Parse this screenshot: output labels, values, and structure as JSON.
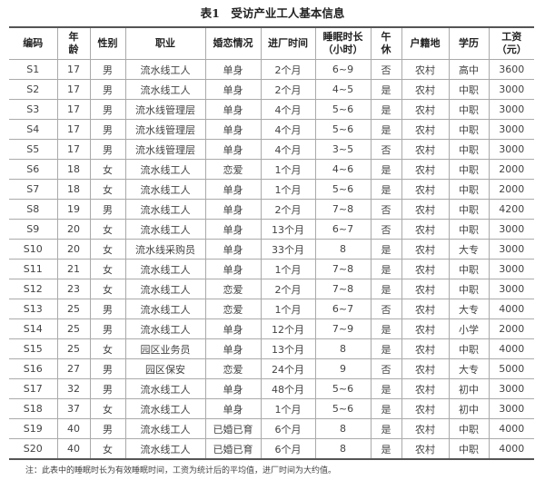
{
  "title": "表1　受访产业工人基本信息",
  "headers": [
    "编码",
    "年龄",
    "性别",
    "职业",
    "婚恋情况",
    "进厂时间",
    "睡眠时长（小时）",
    "午休",
    "户籍地",
    "学历",
    "工资（元）"
  ],
  "rows": [
    [
      "S1",
      "17",
      "男",
      "流水线工人",
      "单身",
      "2个月",
      "6~9",
      "否",
      "农村",
      "高中",
      "3600"
    ],
    [
      "S2",
      "17",
      "男",
      "流水线工人",
      "单身",
      "2个月",
      "4~5",
      "是",
      "农村",
      "中职",
      "3000"
    ],
    [
      "S3",
      "17",
      "男",
      "流水线管理层",
      "单身",
      "4个月",
      "5~6",
      "是",
      "农村",
      "中职",
      "3000"
    ],
    [
      "S4",
      "17",
      "男",
      "流水线管理层",
      "单身",
      "4个月",
      "5~6",
      "是",
      "农村",
      "中职",
      "3000"
    ],
    [
      "S5",
      "17",
      "男",
      "流水线管理层",
      "单身",
      "4个月",
      "3~5",
      "否",
      "农村",
      "中职",
      "3000"
    ],
    [
      "S6",
      "18",
      "女",
      "流水线工人",
      "恋爱",
      "1个月",
      "4~6",
      "是",
      "农村",
      "中职",
      "2000"
    ],
    [
      "S7",
      "18",
      "女",
      "流水线工人",
      "单身",
      "1个月",
      "5~6",
      "是",
      "农村",
      "中职",
      "2000"
    ],
    [
      "S8",
      "19",
      "男",
      "流水线工人",
      "单身",
      "2个月",
      "7~8",
      "否",
      "农村",
      "中职",
      "4200"
    ],
    [
      "S9",
      "20",
      "女",
      "流水线工人",
      "单身",
      "13个月",
      "6~7",
      "否",
      "农村",
      "中职",
      "3000"
    ],
    [
      "S10",
      "20",
      "女",
      "流水线采购员",
      "单身",
      "33个月",
      "8",
      "是",
      "农村",
      "大专",
      "3000"
    ],
    [
      "S11",
      "21",
      "女",
      "流水线工人",
      "单身",
      "1个月",
      "7~8",
      "是",
      "农村",
      "中职",
      "3000"
    ],
    [
      "S12",
      "23",
      "女",
      "流水线工人",
      "恋爱",
      "2个月",
      "7~8",
      "是",
      "农村",
      "中职",
      "3000"
    ],
    [
      "S13",
      "25",
      "男",
      "流水线工人",
      "恋爱",
      "1个月",
      "6~7",
      "否",
      "农村",
      "大专",
      "4000"
    ],
    [
      "S14",
      "25",
      "男",
      "流水线工人",
      "单身",
      "12个月",
      "7~9",
      "是",
      "农村",
      "小学",
      "2000"
    ],
    [
      "S15",
      "25",
      "女",
      "园区业务员",
      "单身",
      "13个月",
      "8",
      "是",
      "农村",
      "中职",
      "4000"
    ],
    [
      "S16",
      "27",
      "男",
      "园区保安",
      "恋爱",
      "24个月",
      "9",
      "否",
      "农村",
      "大专",
      "5000"
    ],
    [
      "S17",
      "32",
      "男",
      "流水线工人",
      "单身",
      "48个月",
      "5~6",
      "是",
      "农村",
      "初中",
      "3000"
    ],
    [
      "S18",
      "37",
      "女",
      "流水线工人",
      "单身",
      "1个月",
      "5~6",
      "是",
      "农村",
      "初中",
      "3000"
    ],
    [
      "S19",
      "40",
      "男",
      "流水线工人",
      "已婚已育",
      "6个月",
      "8",
      "是",
      "农村",
      "中职",
      "4000"
    ],
    [
      "S20",
      "40",
      "女",
      "流水线工人",
      "已婚已育",
      "6个月",
      "8",
      "是",
      "农村",
      "中职",
      "4000"
    ]
  ],
  "note": "注：此表中的睡眠时长为有效睡眠时间，工资为统计后的平均值，进厂时间为大约值。"
}
